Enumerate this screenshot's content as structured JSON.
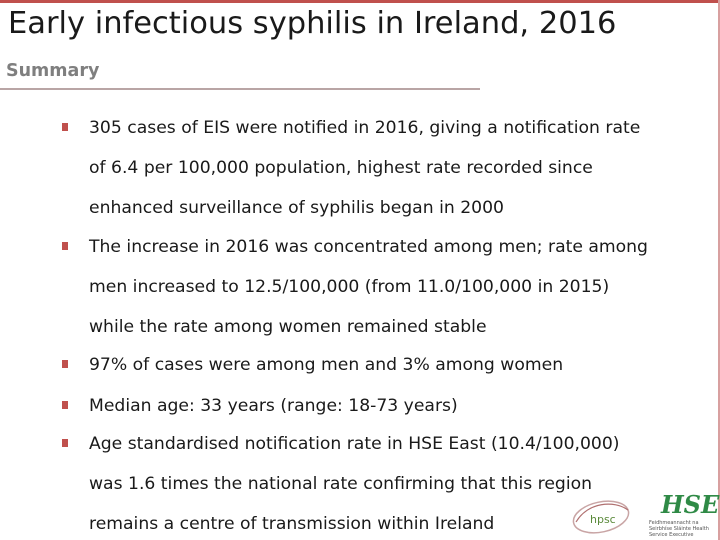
{
  "slide": {
    "title": "Early infectious syphilis in Ireland, 2016",
    "subtitle": "Summary",
    "bullets": [
      {
        "lines": [
          "305 cases of EIS were notified in 2016, giving a notification rate",
          "of 6.4 per 100,000 population, highest rate recorded since",
          "enhanced surveillance of syphilis began in 2000"
        ]
      },
      {
        "lines": [
          "The increase in 2016 was concentrated among men; rate among",
          "men increased to 12.5/100,000 (from 11.0/100,000 in 2015)",
          "while the rate among women remained stable"
        ]
      },
      {
        "lines": [
          "97% of cases were among men and 3% among women"
        ]
      },
      {
        "lines": [
          "Median age: 33 years (range: 18-73 years)"
        ]
      },
      {
        "lines": [
          "Age standardised notification rate in HSE East (10.4/100,000)",
          "was 1.6 times the national rate confirming that this region",
          "remains a centre of transmission within Ireland"
        ]
      }
    ]
  },
  "logos": {
    "hpsc": {
      "text": "hpsc"
    },
    "hse": {
      "text": "HSE",
      "caption": "Feidhmeannacht na Seirbhíse Sláinte Health Service Executive"
    }
  },
  "colors": {
    "accent": "#c0504d",
    "hse_green": "#2f8a46",
    "hpsc_green": "#5a8a3a"
  }
}
